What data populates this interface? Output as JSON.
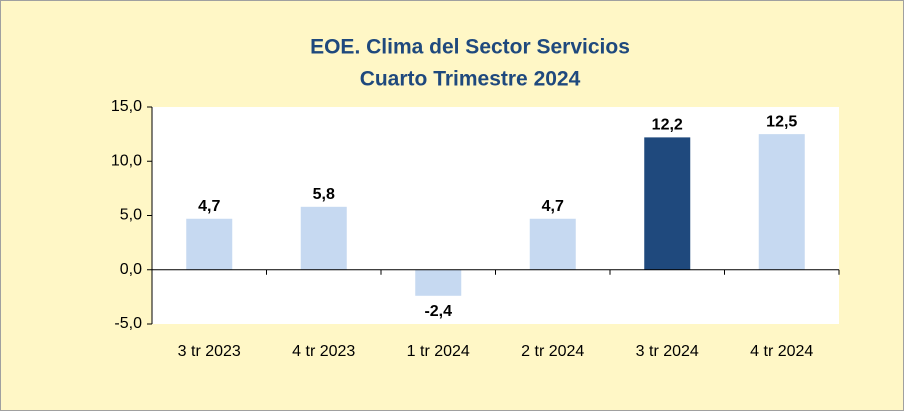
{
  "chart_data": {
    "type": "bar",
    "title": [
      "EOE. Clima del Sector Servicios",
      "Cuarto Trimestre 2024"
    ],
    "categories": [
      "3 tr 2023",
      "4 tr 2023",
      "1 tr 2024",
      "2 tr 2024",
      "3 tr 2024",
      "4 tr 2024"
    ],
    "values": [
      4.7,
      5.8,
      -2.4,
      4.7,
      12.2,
      12.5
    ],
    "value_labels": [
      "4,7",
      "5,8",
      "-2,4",
      "4,7",
      "12,2",
      "12,5"
    ],
    "colors": [
      "#c6d9f1",
      "#c6d9f1",
      "#c6d9f1",
      "#c6d9f1",
      "#1f497d",
      "#c6d9f1"
    ],
    "ylim": [
      -5,
      15
    ],
    "yticks": [
      {
        "value": -5,
        "label": "-5,0"
      },
      {
        "value": 0,
        "label": "0,0"
      },
      {
        "value": 5,
        "label": "5,0"
      },
      {
        "value": 10,
        "label": "10,0"
      },
      {
        "value": 15,
        "label": "15,0"
      }
    ],
    "grid": false
  }
}
